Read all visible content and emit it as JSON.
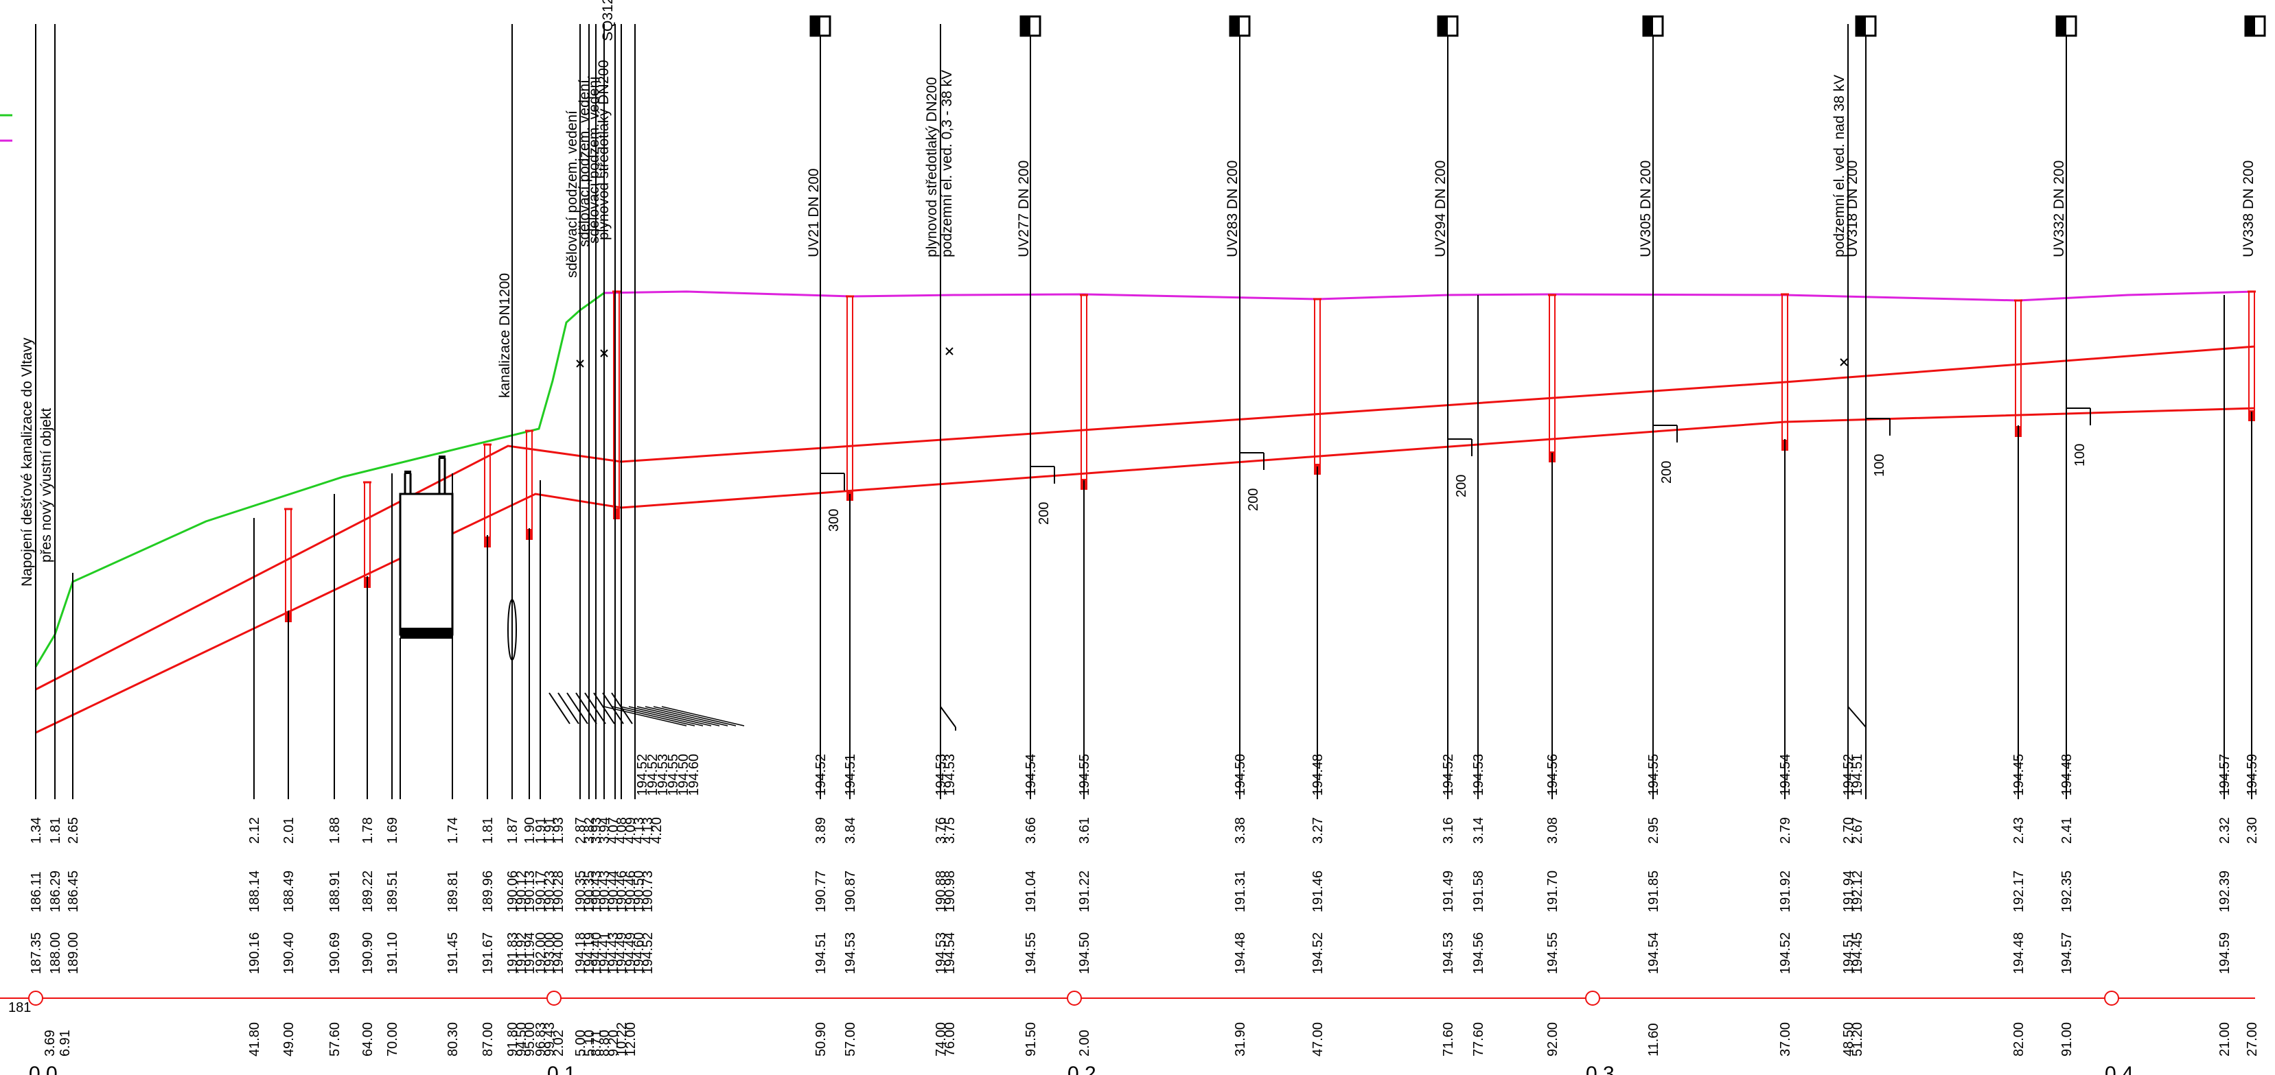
{
  "datum_label": "181",
  "station_labels": [
    "0.0",
    "0.1",
    "0.2",
    "0.3",
    "0.4"
  ],
  "rows": [
    {
      "key": "b",
      "items": [
        {
          "f": "194.52"
        },
        {
          "f": "194.52"
        },
        {
          "f": "194.53"
        },
        {
          "f": "194.55"
        },
        {
          "f": "194.50"
        },
        {
          "f": "194.60"
        },
        {
          "f": "194.52"
        },
        {
          "f": "194.51"
        },
        {
          "f": "194.53"
        },
        {
          "f": "194.53"
        },
        {
          "f": "194.54"
        },
        {
          "f": "194.55"
        },
        {
          "f": "194.50"
        },
        {
          "f": "194.48"
        },
        {
          "f": "194.52"
        },
        {
          "f": "194.53"
        },
        {
          "f": "194.56"
        },
        {
          "f": "194.55"
        },
        {
          "f": "194.54"
        },
        {
          "f": "194.52"
        },
        {
          "f": "194.51"
        },
        {
          "f": "194.45"
        },
        {
          "f": "194.48"
        },
        {
          "f": "194.57"
        },
        {
          "f": "194.59"
        }
      ]
    },
    {
      "key": "c",
      "items": [
        {
          "f": "1.34"
        },
        {
          "f": "1.81"
        },
        {
          "f": "2.65"
        },
        {
          "f": "2.12"
        },
        {
          "f": "2.01"
        },
        {
          "f": "1.88"
        },
        {
          "f": "1.78"
        },
        {
          "f": "1.69"
        },
        {
          "f": "1.74"
        },
        {
          "f": "1.81"
        },
        {
          "f": "1.87"
        },
        {
          "f": "1.90"
        },
        {
          "f": "1.91"
        },
        {
          "f": "1.91"
        },
        {
          "f": "1.93"
        },
        {
          "f": "2.87"
        },
        {
          "f": "3.82"
        },
        {
          "f": "3.93"
        },
        {
          "f": "3.94"
        },
        {
          "f": "4.07"
        },
        {
          "f": "4.08"
        },
        {
          "f": "4.09"
        },
        {
          "f": "4.13"
        },
        {
          "f": "4.13"
        },
        {
          "f": "4.20"
        },
        {
          "f": "3.89"
        },
        {
          "f": "3.84"
        },
        {
          "f": "3.76"
        },
        {
          "f": "3.75"
        },
        {
          "f": "3.66"
        },
        {
          "f": "3.61"
        },
        {
          "f": "3.38"
        },
        {
          "f": "3.27"
        },
        {
          "f": "3.16"
        },
        {
          "f": "3.14"
        },
        {
          "f": "3.08"
        },
        {
          "f": "2.95"
        },
        {
          "f": "2.79"
        },
        {
          "f": "2.70"
        },
        {
          "f": "2.67"
        },
        {
          "f": "2.43"
        },
        {
          "f": "2.41"
        },
        {
          "f": "2.32"
        },
        {
          "f": "2.30"
        }
      ]
    },
    {
      "key": "d",
      "items": [
        {
          "f": "186.11"
        },
        {
          "f": "186.29"
        },
        {
          "f": "186.45"
        },
        {
          "f": "188.14"
        },
        {
          "f": "188.49"
        },
        {
          "f": "188.91"
        },
        {
          "f": "189.22"
        },
        {
          "f": "189.51"
        },
        {
          "f": "189.81"
        },
        {
          "f": "189.96"
        },
        {
          "f": "190.06"
        },
        {
          "f": "190.12"
        },
        {
          "f": "190.13"
        },
        {
          "f": "190.17"
        },
        {
          "f": "190.23"
        },
        {
          "f": "190.28"
        },
        {
          "f": "190.35"
        },
        {
          "f": "190.35"
        },
        {
          "f": "190.43"
        },
        {
          "f": "190.43"
        },
        {
          "f": "190.44"
        },
        {
          "f": "190.46"
        },
        {
          "f": "190.46"
        },
        {
          "f": "190.50"
        },
        {
          "f": "190.73"
        },
        {
          "f": "190.77"
        },
        {
          "f": "190.87"
        },
        {
          "f": "190.88"
        },
        {
          "f": "190.98"
        },
        {
          "f": "191.04"
        },
        {
          "f": "191.22"
        },
        {
          "f": "191.31"
        },
        {
          "f": "191.46"
        },
        {
          "f": "191.49"
        },
        {
          "f": "191.58"
        },
        {
          "f": "191.70"
        },
        {
          "f": "191.85"
        },
        {
          "f": "191.92"
        },
        {
          "f": "191.94"
        },
        {
          "f": "192.12"
        },
        {
          "f": "192.17"
        },
        {
          "f": "192.35"
        },
        {
          "f": "192.39"
        }
      ]
    },
    {
      "key": "e",
      "items": [
        {
          "f": "187.35"
        },
        {
          "f": "188.00"
        },
        {
          "f": "189.00"
        },
        {
          "f": "190.16"
        },
        {
          "f": "190.40"
        },
        {
          "f": "190.69"
        },
        {
          "f": "190.90"
        },
        {
          "f": "191.10"
        },
        {
          "f": "191.45"
        },
        {
          "f": "191.67"
        },
        {
          "f": "191.83"
        },
        {
          "f": "191.92"
        },
        {
          "f": "191.94"
        },
        {
          "f": "192.00"
        },
        {
          "f": "193.00"
        },
        {
          "f": "194.00"
        },
        {
          "f": "194.18"
        },
        {
          "f": "194.19"
        },
        {
          "f": "194.40"
        },
        {
          "f": "194.41"
        },
        {
          "f": "194.43"
        },
        {
          "f": "194.49"
        },
        {
          "f": "194.49"
        },
        {
          "f": "194.60"
        },
        {
          "f": "194.52"
        },
        {
          "f": "194.51"
        },
        {
          "f": "194.53"
        },
        {
          "f": "194.53"
        },
        {
          "f": "194.54"
        },
        {
          "f": "194.55"
        },
        {
          "f": "194.50"
        },
        {
          "f": "194.48"
        },
        {
          "f": "194.52"
        },
        {
          "f": "194.53"
        },
        {
          "f": "194.56"
        },
        {
          "f": "194.55"
        },
        {
          "f": "194.54"
        },
        {
          "f": "194.52"
        },
        {
          "f": "194.51"
        },
        {
          "f": "194.45"
        },
        {
          "f": "194.48"
        },
        {
          "f": "194.57"
        },
        {
          "f": "194.59"
        }
      ]
    },
    {
      "key": "g",
      "items": [
        {
          "f": "3.69"
        },
        {
          "f": "6.91"
        },
        {
          "f": "41.80"
        },
        {
          "f": "49.00"
        },
        {
          "f": "57.60"
        },
        {
          "f": "64.00"
        },
        {
          "f": "70.00"
        },
        {
          "f": "80.30"
        },
        {
          "f": "87.00"
        },
        {
          "f": "91.80"
        },
        {
          "f": "94.50"
        },
        {
          "f": "95.00"
        },
        {
          "f": "96.83"
        },
        {
          "f": "99.43"
        },
        {
          "f": "2.02"
        },
        {
          "f": "5.00"
        },
        {
          "f": "5.10"
        },
        {
          "f": "8.71"
        },
        {
          "f": "8.80"
        },
        {
          "f": "9.20"
        },
        {
          "f": "10.22"
        },
        {
          "f": "12.00"
        },
        {
          "f": "50.90"
        },
        {
          "f": "57.00"
        },
        {
          "f": "74.00"
        },
        {
          "f": "76.00"
        },
        {
          "f": "91.50"
        },
        {
          "f": "2.00"
        },
        {
          "f": "31.90"
        },
        {
          "f": "47.00"
        },
        {
          "f": "71.60"
        },
        {
          "f": "77.60"
        },
        {
          "f": "92.00"
        },
        {
          "f": "11.60"
        },
        {
          "f": "37.00"
        },
        {
          "f": "48.50"
        },
        {
          "f": "51.20"
        },
        {
          "f": "82.00"
        },
        {
          "f": "91.00"
        },
        {
          "f": "21.00"
        },
        {
          "f": "27.00"
        }
      ]
    }
  ],
  "annotations": [
    {
      "key": "napojeni",
      "f": "Napojení dešťové kanalizace do Vltavy"
    },
    {
      "key": "pres",
      "f": "přes nový výustní objekt"
    },
    {
      "key": "kanal",
      "f": "kanalizace DN1200"
    },
    {
      "key": "sdel1",
      "f": "sdělovací podzem. vedení"
    },
    {
      "key": "sdel2",
      "f": "sdělovací podzem. vedení"
    },
    {
      "key": "sdel3",
      "f": "sdělovací podzem. vedení"
    },
    {
      "key": "plyn1",
      "f": "plynovod středotlaký DN200"
    },
    {
      "key": "sq",
      "f": "SQ312"
    },
    {
      "key": "uv21",
      "f": "UV21 DN 200"
    },
    {
      "key": "plyn2",
      "f": "plynovod středotlaký DN200"
    },
    {
      "key": "podz1",
      "f": "podzemní el. ved. 0,3 - 38 kV"
    },
    {
      "key": "uv277",
      "f": "UV277 DN 200"
    },
    {
      "key": "uv283",
      "f": "UV283 DN 200"
    },
    {
      "key": "uv294",
      "f": "UV294 DN 200"
    },
    {
      "key": "uv305",
      "f": "UV305 DN 200"
    },
    {
      "key": "podz2",
      "f": "podzemní el. ved. nad 38 kV"
    },
    {
      "key": "uv318",
      "f": "UV318 DN 200"
    },
    {
      "key": "uv332",
      "f": "UV332 DN 200"
    },
    {
      "key": "uv338",
      "f": "UV338 DN 200"
    }
  ],
  "pipe_dims": [
    "300",
    "200",
    "200",
    "200",
    "200",
    "100",
    "100"
  ],
  "colors": {
    "terrain": "#22cc22",
    "design_surface": "#dd22dd",
    "pipe": "#ee1111",
    "line": "#000000"
  }
}
